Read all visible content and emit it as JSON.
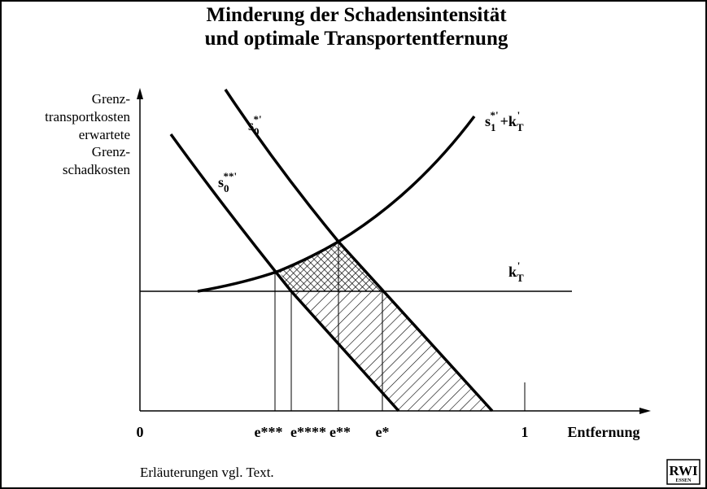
{
  "title": [
    "Minderung der Schadensintensität",
    "und optimale Transportentfernung"
  ],
  "y_axis_label": [
    "Grenz-",
    "transportkosten",
    "erwartete",
    "Grenz-",
    "schadkosten"
  ],
  "x_axis_label": "Entfernung",
  "curve_labels": {
    "s0_star": {
      "base": "s",
      "sub": "0",
      "sup": "*'"
    },
    "s0_2star": {
      "base": "s",
      "sub": "0",
      "sup": "**'"
    },
    "s1_plus_kT": {
      "base": "s",
      "sub": "1",
      "sup": "*'",
      "plus": "+",
      "base2": "k",
      "sub2": "T",
      "sup2": "'"
    },
    "kT": {
      "base": "k",
      "sub": "T",
      "sup": "'"
    }
  },
  "x_ticks": [
    "0",
    "e***",
    "e****",
    "e**",
    "e*",
    "1"
  ],
  "footnote": "Erläuterungen vgl. Text.",
  "logo": [
    "RWI",
    "ESSEN"
  ]
}
